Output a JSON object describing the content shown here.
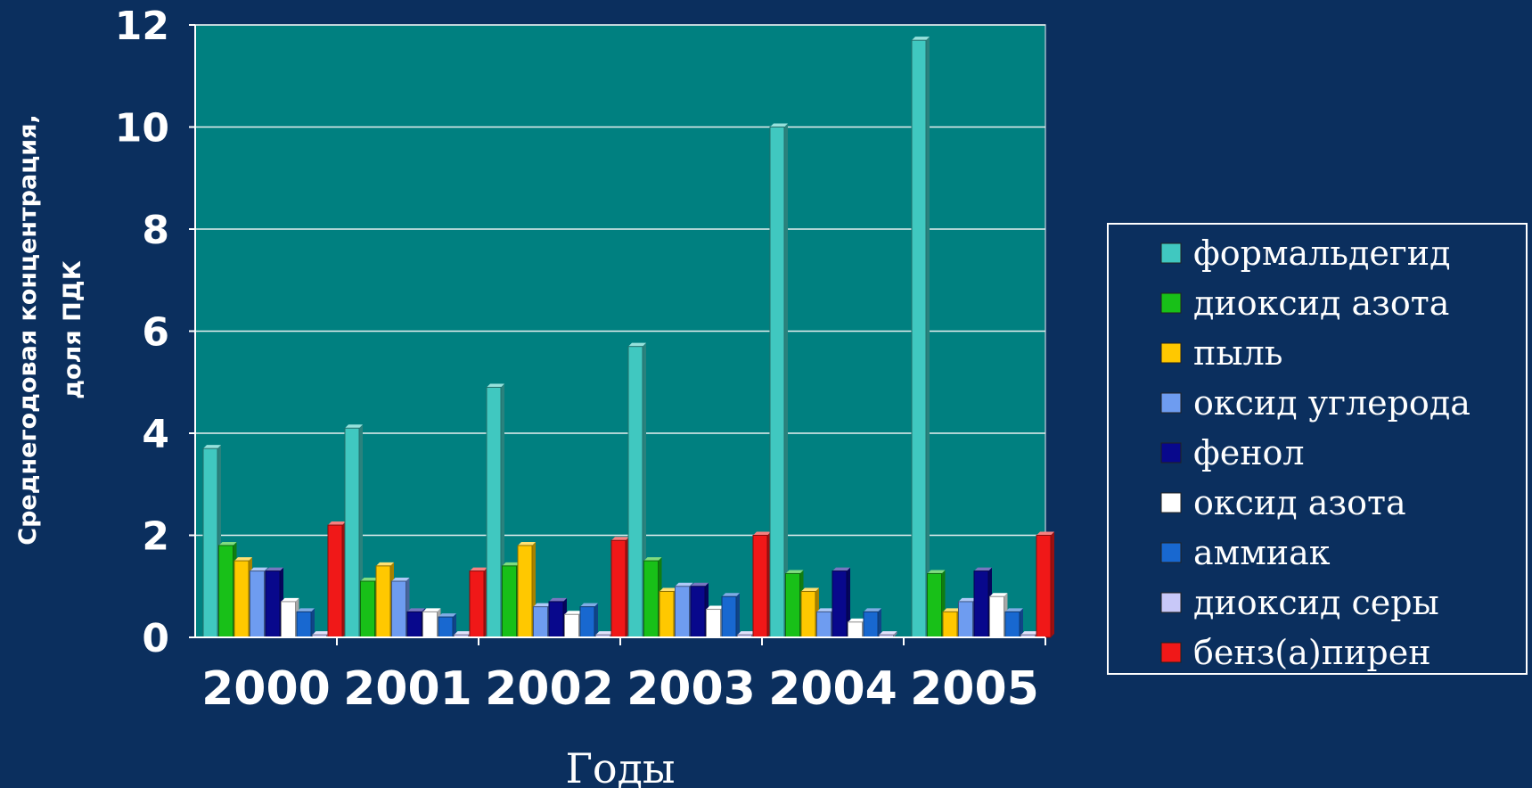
{
  "chart_data": {
    "type": "bar",
    "title": "",
    "xlabel": "Годы",
    "ylabel_lines": [
      "Среднегодовая концентрация,",
      "доля ПДК"
    ],
    "ylim": [
      0,
      12
    ],
    "yticks": [
      0,
      2,
      4,
      6,
      8,
      10,
      12
    ],
    "grid": true,
    "legend_position": "right",
    "categories": [
      "2000",
      "2001",
      "2002",
      "2003",
      "2004",
      "2005"
    ],
    "series": [
      {
        "name": "формальдегид",
        "color": "#40c8c0",
        "values": [
          3.7,
          4.1,
          4.9,
          5.7,
          10.0,
          11.7
        ]
      },
      {
        "name": "диоксид азота",
        "color": "#18c018",
        "values": [
          1.8,
          1.1,
          1.4,
          1.5,
          1.25,
          1.25
        ]
      },
      {
        "name": "пыль",
        "color": "#ffc800",
        "values": [
          1.5,
          1.4,
          1.8,
          0.9,
          0.9,
          0.5
        ]
      },
      {
        "name": "оксид углерода",
        "color": "#6e9cf0",
        "values": [
          1.3,
          1.1,
          0.6,
          1.0,
          0.5,
          0.7
        ]
      },
      {
        "name": "фенол",
        "color": "#08088c",
        "values": [
          1.3,
          0.5,
          0.7,
          1.0,
          1.3,
          1.3
        ]
      },
      {
        "name": "оксид азота",
        "color": "#ffffff",
        "values": [
          0.7,
          0.5,
          0.45,
          0.55,
          0.3,
          0.8
        ]
      },
      {
        "name": "аммиак",
        "color": "#1868d0",
        "values": [
          0.5,
          0.4,
          0.6,
          0.8,
          0.5,
          0.5
        ]
      },
      {
        "name": "диоксид серы",
        "color": "#c8c8f8",
        "values": [
          0.05,
          0.05,
          0.05,
          0.05,
          0.05,
          0.05
        ]
      },
      {
        "name": "бенз(а)пирен",
        "color": "#f01818",
        "values": [
          2.2,
          1.3,
          1.9,
          2.0,
          0.0,
          2.0
        ]
      }
    ],
    "plot_background": "#008080",
    "page_background": "#0b2f5e"
  }
}
